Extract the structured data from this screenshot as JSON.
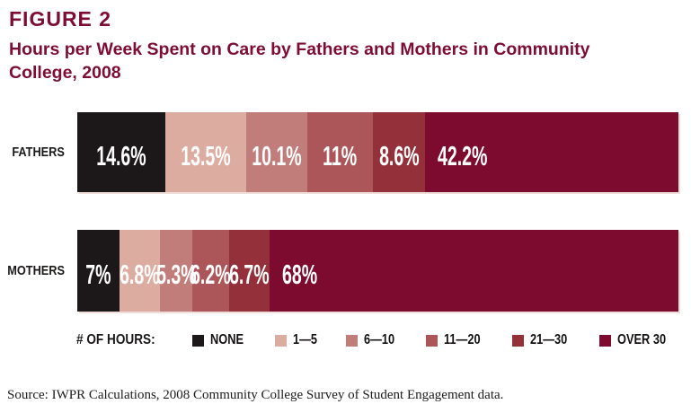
{
  "figure": {
    "label": "FIGURE 2",
    "title": "Hours per Week Spent on Care by Fathers and Mothers in Community College, 2008"
  },
  "colors": {
    "title_maroon": "#7e0d33",
    "label_black": "#1b1818",
    "value_text": "#ffffff",
    "bar_edge_shadow": "#f0ddda"
  },
  "chart_data": {
    "type": "bar",
    "stacked": true,
    "orientation": "horizontal",
    "unit": "percent",
    "title": "Hours per Week Spent on Care by Fathers and Mothers in Community College, 2008",
    "categories": [
      "FATHERS",
      "MOTHERS"
    ],
    "series": [
      {
        "name": "NONE",
        "color": "#1c1819",
        "values": [
          14.6,
          7.0
        ]
      },
      {
        "name": "1—5",
        "color": "#ddaca1",
        "values": [
          13.5,
          6.8
        ]
      },
      {
        "name": "6—10",
        "color": "#c17d7a",
        "values": [
          10.1,
          5.3
        ]
      },
      {
        "name": "11—20",
        "color": "#ac5659",
        "values": [
          11.0,
          6.2
        ]
      },
      {
        "name": "21—30",
        "color": "#93303a",
        "values": [
          8.6,
          6.7
        ]
      },
      {
        "name": "OVER 30",
        "color": "#7d0a2f",
        "values": [
          42.2,
          68.0
        ]
      }
    ],
    "value_labels": [
      [
        "14.6%",
        "13.5%",
        "10.1%",
        "11%",
        "8.6%",
        "42.2%"
      ],
      [
        "7%",
        "6.8%",
        "5.3%",
        "6.2%",
        "6.7%",
        "68%"
      ]
    ],
    "xlim": [
      0,
      100
    ],
    "grid": false,
    "legend_title": "# OF HOURS:",
    "legend_position": "bottom"
  },
  "source": "Source: IWPR Calculations, 2008 Community College Survey of Student Engagement data."
}
